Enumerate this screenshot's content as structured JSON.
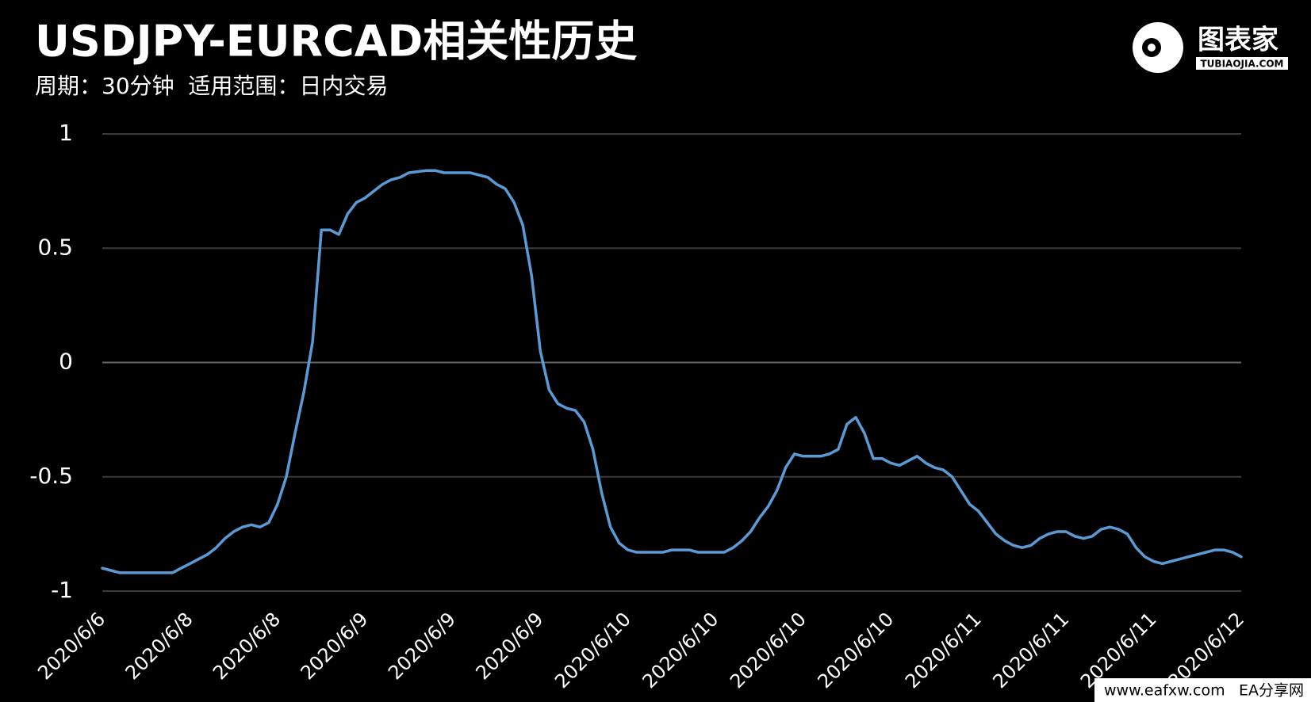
{
  "chart_data": {
    "type": "line",
    "title": "USDJPY-EURCAD相关性历史",
    "subtitle": "周期：30分钟  适用范围：日内交易",
    "categories": [
      "2020/6/6",
      null,
      null,
      null,
      null,
      null,
      null,
      null,
      null,
      null,
      "2020/6/8",
      null,
      null,
      null,
      null,
      null,
      null,
      null,
      null,
      null,
      "2020/6/8",
      null,
      null,
      null,
      null,
      null,
      null,
      null,
      null,
      null,
      "2020/6/9",
      null,
      null,
      null,
      null,
      null,
      null,
      null,
      null,
      null,
      "2020/6/9",
      null,
      null,
      null,
      null,
      null,
      null,
      null,
      null,
      null,
      "2020/6/9",
      null,
      null,
      null,
      null,
      null,
      null,
      null,
      null,
      null,
      "2020/6/10",
      null,
      null,
      null,
      null,
      null,
      null,
      null,
      null,
      null,
      "2020/6/10",
      null,
      null,
      null,
      null,
      null,
      null,
      null,
      null,
      null,
      "2020/6/10",
      null,
      null,
      null,
      null,
      null,
      null,
      null,
      null,
      null,
      "2020/6/10",
      null,
      null,
      null,
      null,
      null,
      null,
      null,
      null,
      null,
      "2020/6/11",
      null,
      null,
      null,
      null,
      null,
      null,
      null,
      null,
      null,
      "2020/6/11",
      null,
      null,
      null,
      null,
      null,
      null,
      null,
      null,
      null,
      "2020/6/11",
      null,
      null,
      null,
      null,
      null,
      null,
      null,
      null,
      null,
      "2020/6/12"
    ],
    "series": [
      {
        "name": "USDJPY-EURCAD",
        "color": "#5b9bd5",
        "values": [
          -0.9,
          -0.91,
          -0.92,
          -0.92,
          -0.92,
          -0.92,
          -0.92,
          -0.92,
          -0.92,
          -0.9,
          -0.88,
          -0.86,
          -0.84,
          -0.81,
          -0.77,
          -0.74,
          -0.72,
          -0.71,
          -0.72,
          -0.7,
          -0.62,
          -0.5,
          -0.31,
          -0.13,
          0.09,
          0.58,
          0.58,
          0.56,
          0.65,
          0.7,
          0.72,
          0.75,
          0.78,
          0.8,
          0.81,
          0.83,
          0.835,
          0.84,
          0.84,
          0.83,
          0.83,
          0.83,
          0.83,
          0.82,
          0.81,
          0.78,
          0.76,
          0.7,
          0.6,
          0.38,
          0.05,
          -0.12,
          -0.18,
          -0.2,
          -0.21,
          -0.26,
          -0.38,
          -0.57,
          -0.72,
          -0.79,
          -0.82,
          -0.83,
          -0.83,
          -0.83,
          -0.83,
          -0.82,
          -0.82,
          -0.82,
          -0.83,
          -0.83,
          -0.83,
          -0.83,
          -0.81,
          -0.78,
          -0.74,
          -0.68,
          -0.63,
          -0.56,
          -0.46,
          -0.4,
          -0.41,
          -0.41,
          -0.41,
          -0.4,
          -0.38,
          -0.27,
          -0.24,
          -0.31,
          -0.42,
          -0.42,
          -0.44,
          -0.45,
          -0.43,
          -0.41,
          -0.44,
          -0.46,
          -0.47,
          -0.5,
          -0.56,
          -0.62,
          -0.65,
          -0.7,
          -0.75,
          -0.78,
          -0.8,
          -0.81,
          -0.8,
          -0.77,
          -0.75,
          -0.74,
          -0.74,
          -0.76,
          -0.77,
          -0.76,
          -0.73,
          -0.72,
          -0.73,
          -0.75,
          -0.81,
          -0.85,
          -0.87,
          -0.88,
          -0.87,
          -0.86,
          -0.85,
          -0.84,
          -0.83,
          -0.82,
          -0.82,
          -0.83,
          -0.85
        ]
      }
    ],
    "ylim": [
      -1,
      1
    ],
    "yticks": [
      -1,
      -0.5,
      0,
      0.5,
      1
    ],
    "grid": true
  },
  "logo": {
    "name": "图表家",
    "domain": "TUBIAOJIA.COM"
  },
  "watermark": {
    "url": "www.eafxw.com",
    "site": "EA分享网"
  }
}
